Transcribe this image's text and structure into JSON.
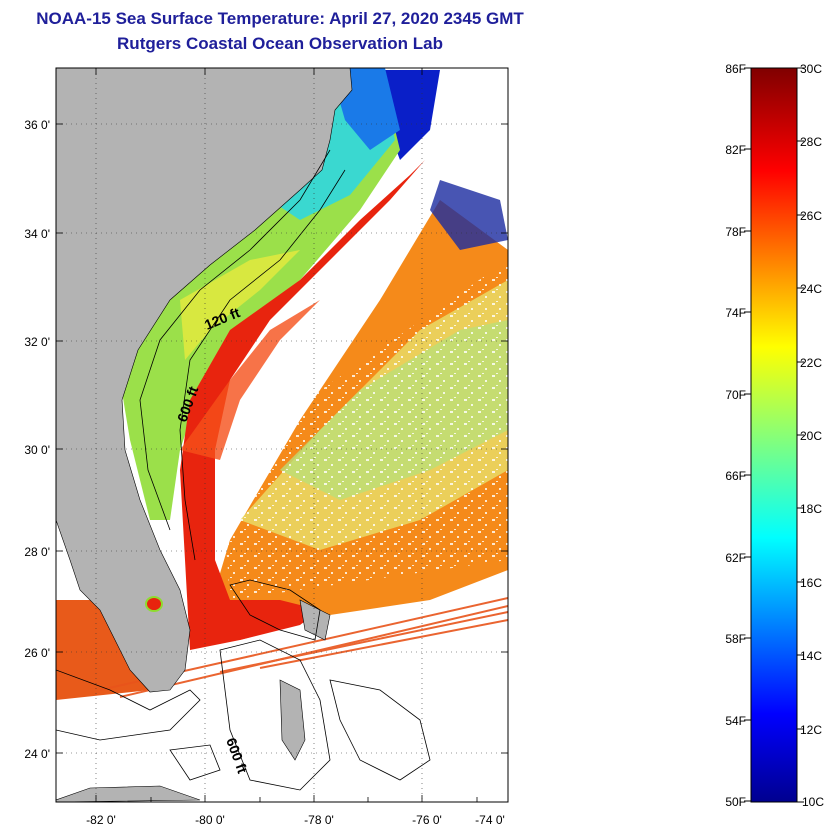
{
  "title_line1": "NOAA-15 Sea Surface Temperature:  April 27, 2020 2345 GMT",
  "title_line2": "Rutgers Coastal Ocean Observation Lab",
  "map": {
    "lon_labels": [
      "-82 0'",
      "-80 0'",
      "-78 0'",
      "-76 0'",
      "-74 0'"
    ],
    "lat_labels": [
      "36 0'",
      "34 0'",
      "32 0'",
      "30 0'",
      "28 0'",
      "26 0'",
      "24 0'"
    ],
    "isobath_labels": [
      "120 ft",
      "600 ft",
      "600 ft"
    ],
    "colors": {
      "land": "#b3b3b3",
      "gulf_stream": "#e8240e",
      "shelf": "#9be04a"
    }
  },
  "colorbar": {
    "f_labels": [
      "86F",
      "82F",
      "78F",
      "74F",
      "70F",
      "66F",
      "62F",
      "58F",
      "54F",
      "50F"
    ],
    "c_labels": [
      "30C",
      "28C",
      "26C",
      "24C",
      "22C",
      "20C",
      "18C",
      "16C",
      "14C",
      "12C",
      "10C"
    ],
    "range_c": [
      10,
      30
    ],
    "range_f": [
      50,
      86
    ],
    "colormap": "jet"
  }
}
